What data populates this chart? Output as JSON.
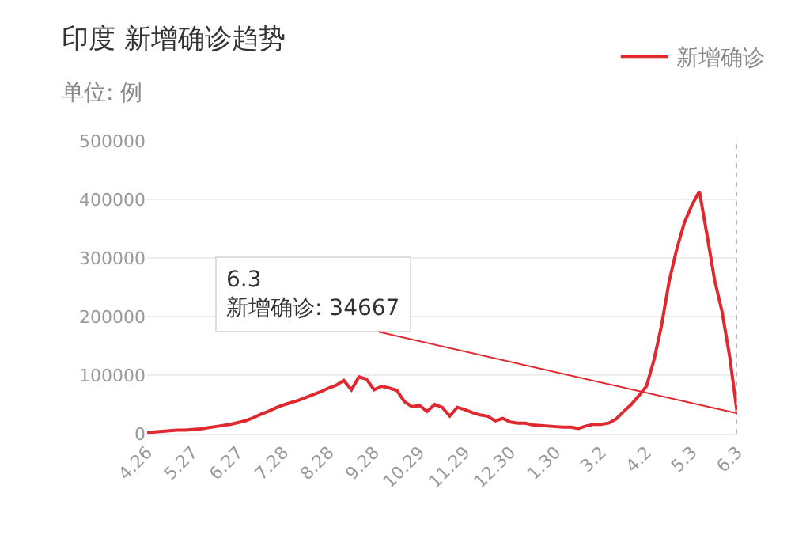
{
  "chart_data": {
    "type": "line",
    "title": "印度 新增确诊趋势",
    "ylabel": "单位: 例",
    "categories": [
      "4.26",
      null,
      null,
      null,
      null,
      null,
      "5.27",
      null,
      null,
      null,
      null,
      null,
      "6.27",
      null,
      null,
      null,
      null,
      null,
      "7.28",
      null,
      null,
      null,
      null,
      null,
      "8.28",
      null,
      null,
      null,
      null,
      null,
      "9.28",
      null,
      null,
      null,
      null,
      null,
      "10.29",
      null,
      null,
      null,
      null,
      null,
      "11.29",
      null,
      null,
      null,
      null,
      null,
      "12.30",
      null,
      null,
      null,
      null,
      null,
      "1.30",
      null,
      null,
      null,
      null,
      null,
      "3.2",
      null,
      null,
      null,
      null,
      null,
      "4.2",
      null,
      null,
      null,
      null,
      null,
      "5.3",
      null,
      null,
      null,
      null,
      null,
      "6.3"
    ],
    "series": [
      {
        "name": "新增确诊",
        "color": "#e0292f",
        "values": [
          2000,
          3000,
          4000,
          5000,
          6000,
          6000,
          7000,
          8000,
          10000,
          12000,
          14000,
          16000,
          19000,
          22000,
          27000,
          33000,
          38000,
          44000,
          49000,
          53000,
          57000,
          62000,
          67000,
          72000,
          78000,
          83000,
          91000,
          75000,
          97000,
          93000,
          75000,
          81000,
          78000,
          74000,
          55000,
          46000,
          48000,
          38000,
          50000,
          45000,
          30000,
          45000,
          41000,
          36000,
          32000,
          30000,
          22000,
          26000,
          20000,
          18000,
          18000,
          15000,
          14000,
          13000,
          12000,
          11000,
          11000,
          9000,
          13000,
          16000,
          16000,
          18000,
          25000,
          38000,
          50000,
          65000,
          81000,
          126000,
          185000,
          260000,
          315000,
          360000,
          390000,
          414000,
          340000,
          263000,
          208000,
          132000,
          34667
        ]
      }
    ],
    "ylim": [
      0,
      500000
    ],
    "yticks": [
      0,
      100000,
      200000,
      300000,
      400000,
      500000
    ],
    "ref_lines": [
      {
        "axis": "x",
        "value": "6.3",
        "color": "#bbbbbb",
        "line_style": "dotted"
      }
    ],
    "annotations": [
      {
        "text": "6.3\n新增确诊: 34667",
        "x": "6.3",
        "y": 34667
      }
    ],
    "grid": "y",
    "legend": "top right"
  }
}
